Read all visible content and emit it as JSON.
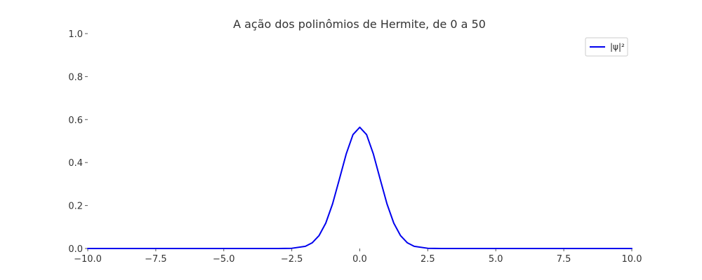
{
  "chart_data": {
    "type": "line",
    "title": "A ação dos polinômios de Hermite, de 0 a 50",
    "xlabel": "",
    "ylabel": "",
    "xlim": [
      -10,
      10
    ],
    "ylim": [
      0,
      1
    ],
    "x_ticks": [
      -10,
      -7.5,
      -5,
      -2.5,
      0,
      2.5,
      5,
      7.5,
      10
    ],
    "x_tick_labels": [
      "−10.0",
      "−7.5",
      "−5.0",
      "−2.5",
      "0.0",
      "2.5",
      "5.0",
      "7.5",
      "10.0"
    ],
    "y_ticks": [
      0,
      0.2,
      0.4,
      0.6,
      0.8,
      1.0
    ],
    "y_tick_labels": [
      "0.0",
      "0.2",
      "0.4",
      "0.6",
      "0.8",
      "1.0"
    ],
    "grid": false,
    "legend_position": "top-right",
    "series": [
      {
        "name": "|ψ|²",
        "color": "#0000ee",
        "x": [
          -10,
          -5,
          -3,
          -2.5,
          -2,
          -1.75,
          -1.5,
          -1.25,
          -1,
          -0.75,
          -0.5,
          -0.25,
          0,
          0.25,
          0.5,
          0.75,
          1,
          1.25,
          1.5,
          1.75,
          2,
          2.5,
          3,
          5,
          10
        ],
        "y": [
          0,
          0,
          0.0001,
          0.001,
          0.0103,
          0.0264,
          0.0595,
          0.1181,
          0.2076,
          0.3225,
          0.4394,
          0.5299,
          0.5642,
          0.5299,
          0.4394,
          0.3225,
          0.2076,
          0.1181,
          0.0595,
          0.0264,
          0.0103,
          0.001,
          0.0001,
          0,
          0
        ]
      }
    ]
  }
}
